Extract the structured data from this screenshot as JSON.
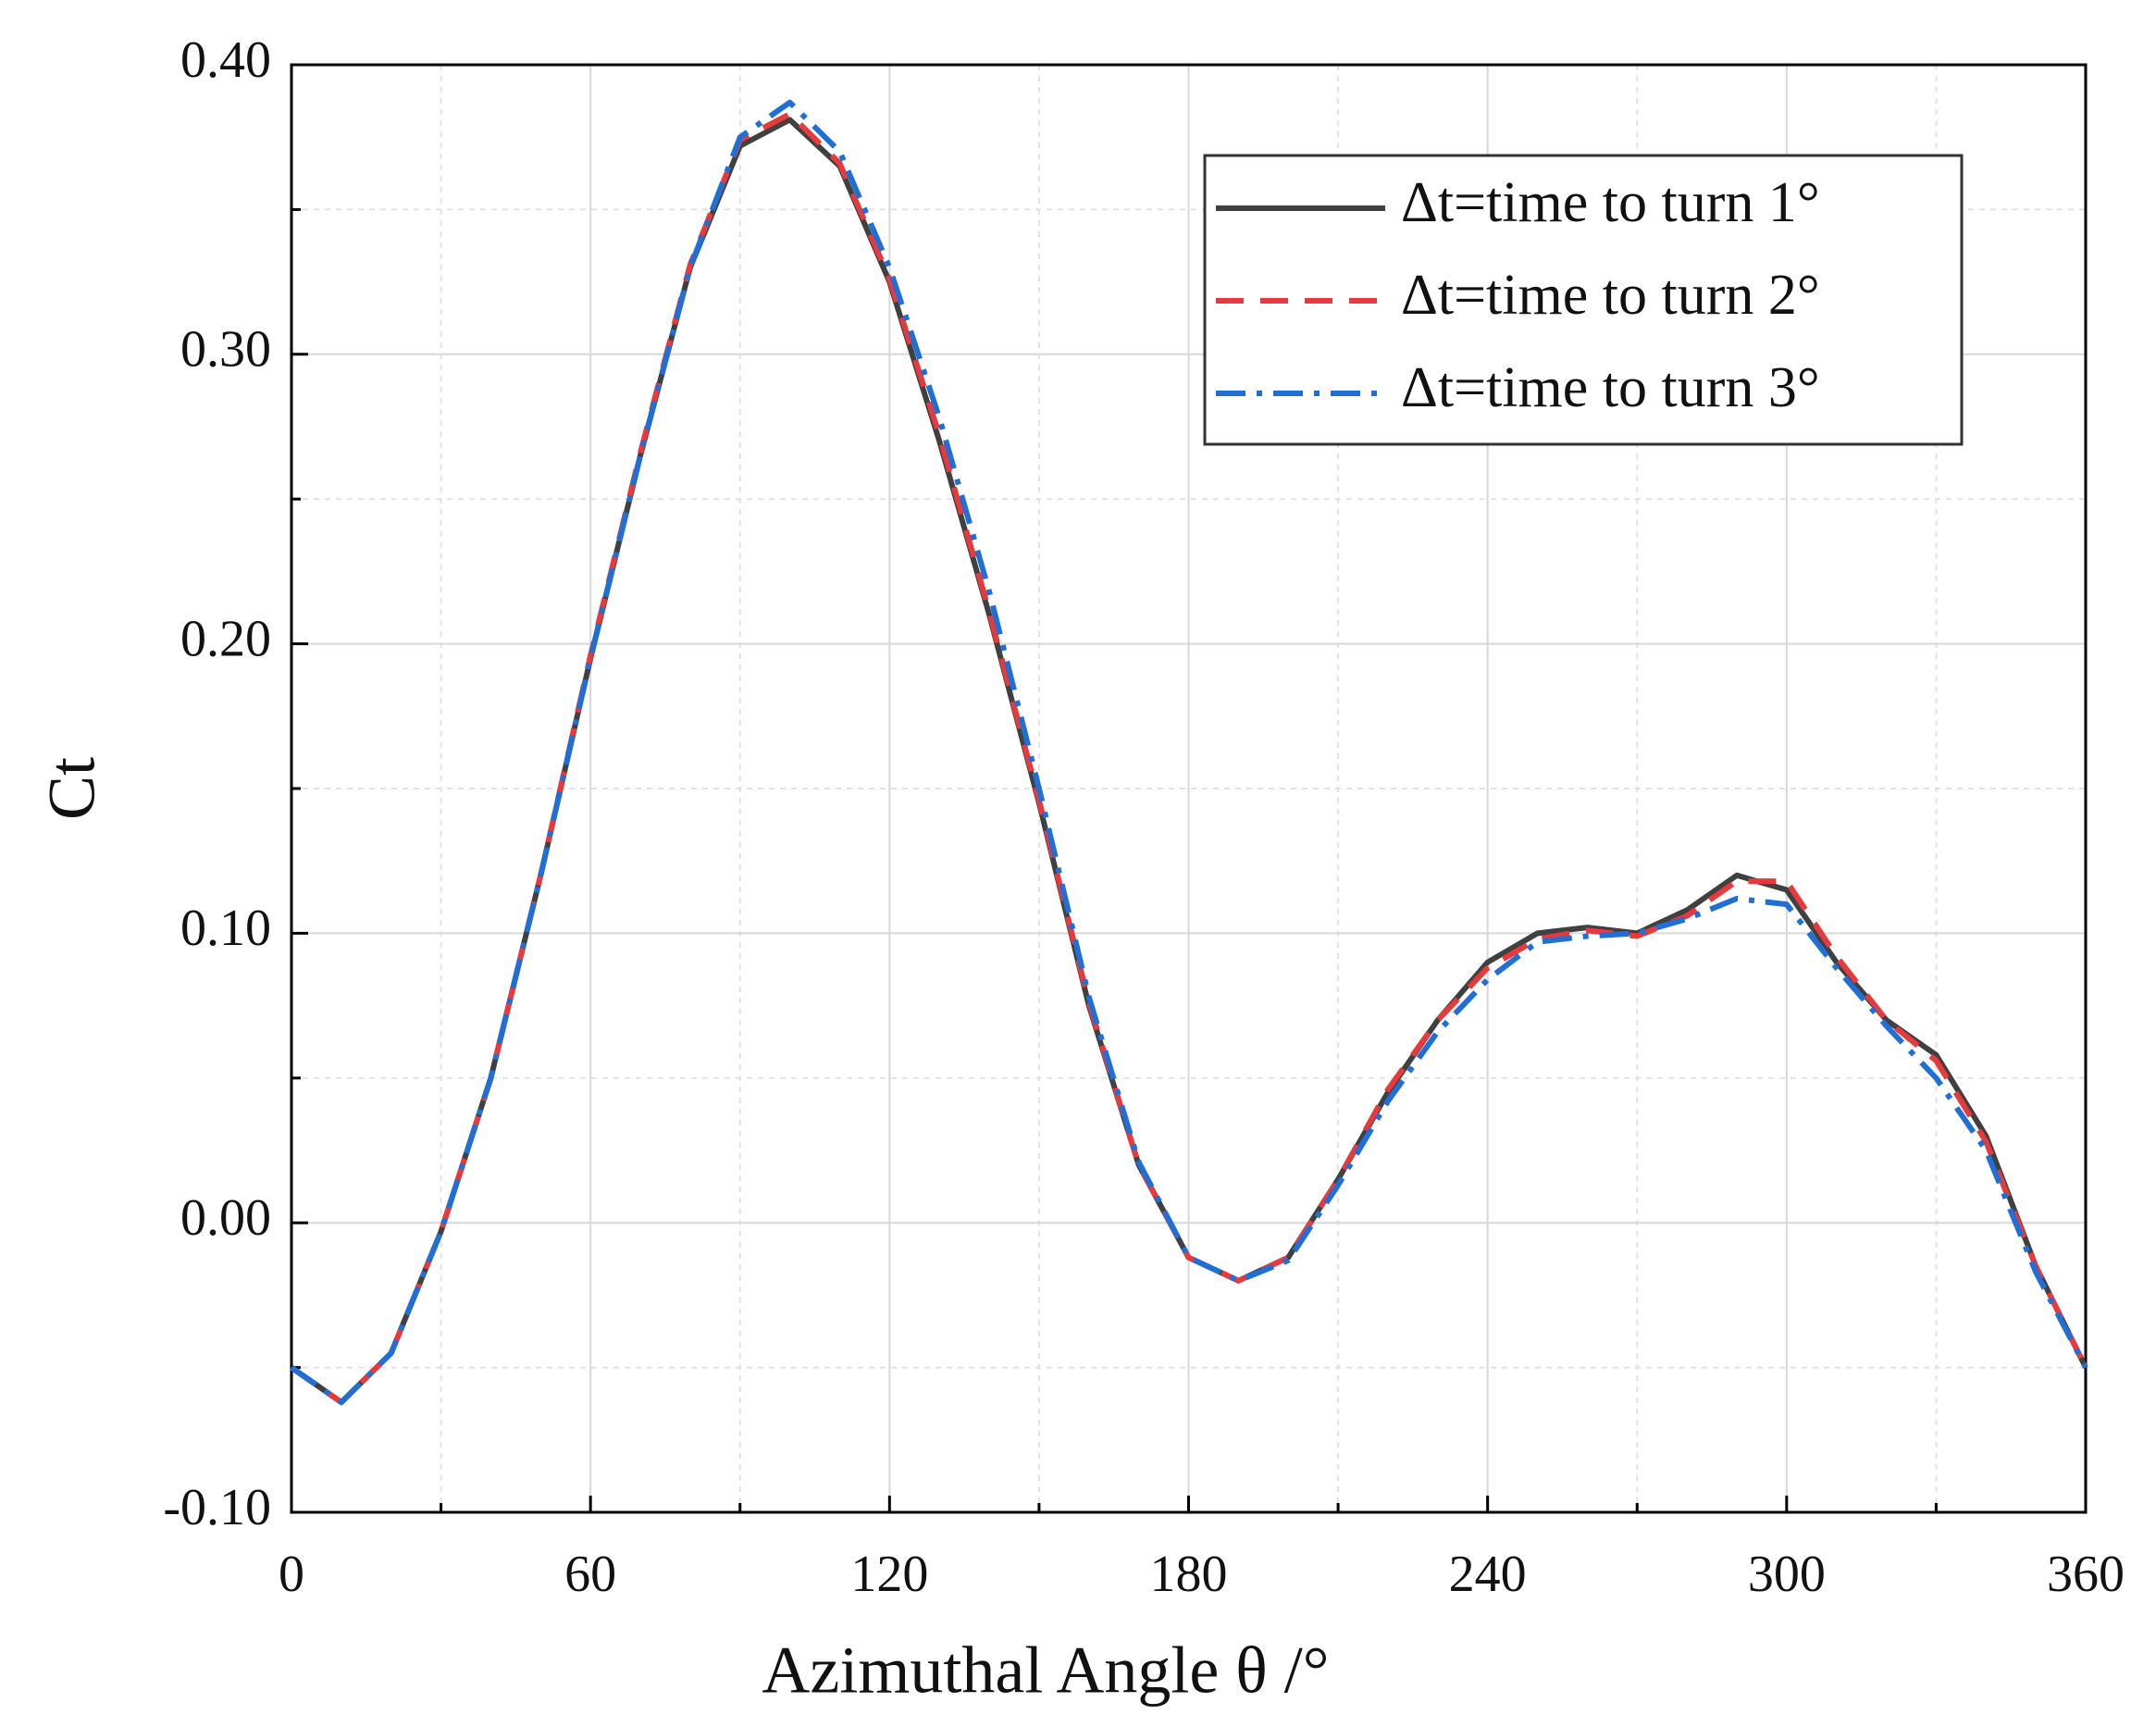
{
  "chart_data": {
    "type": "line",
    "x_label": "Azimuthal Angle θ /°",
    "y_label": "Ct",
    "x": [
      0,
      10,
      20,
      30,
      40,
      50,
      60,
      70,
      80,
      90,
      100,
      110,
      120,
      130,
      140,
      150,
      160,
      170,
      180,
      190,
      200,
      210,
      220,
      230,
      240,
      250,
      260,
      270,
      280,
      290,
      300,
      310,
      320,
      330,
      340,
      350,
      360
    ],
    "series": [
      {
        "name": "Δt=time to turn 1°",
        "color": "#404040",
        "dash": "solid",
        "values": [
          -0.05,
          -0.062,
          -0.045,
          -0.003,
          0.05,
          0.12,
          0.195,
          0.265,
          0.33,
          0.372,
          0.381,
          0.365,
          0.325,
          0.27,
          0.21,
          0.145,
          0.075,
          0.02,
          -0.012,
          -0.02,
          -0.012,
          0.015,
          0.045,
          0.07,
          0.09,
          0.1,
          0.102,
          0.1,
          0.108,
          0.12,
          0.115,
          0.09,
          0.07,
          0.058,
          0.03,
          -0.015,
          -0.05
        ]
      },
      {
        "name": "Δt=time to turn 2°",
        "color": "#e8393c",
        "dash": "dashed",
        "values": [
          -0.05,
          -0.062,
          -0.045,
          -0.003,
          0.05,
          0.12,
          0.196,
          0.266,
          0.331,
          0.374,
          0.383,
          0.366,
          0.326,
          0.272,
          0.211,
          0.146,
          0.076,
          0.02,
          -0.012,
          -0.02,
          -0.012,
          0.015,
          0.046,
          0.07,
          0.088,
          0.098,
          0.101,
          0.099,
          0.106,
          0.118,
          0.118,
          0.092,
          0.07,
          0.056,
          0.028,
          -0.015,
          -0.05
        ]
      },
      {
        "name": "Δt=time to turn 3°",
        "color": "#1f6fd6",
        "dash": "dashdot",
        "values": [
          -0.05,
          -0.062,
          -0.045,
          -0.003,
          0.05,
          0.12,
          0.195,
          0.265,
          0.33,
          0.375,
          0.387,
          0.37,
          0.33,
          0.278,
          0.218,
          0.15,
          0.078,
          0.021,
          -0.012,
          -0.02,
          -0.013,
          0.013,
          0.042,
          0.066,
          0.084,
          0.097,
          0.099,
          0.1,
          0.105,
          0.112,
          0.11,
          0.088,
          0.068,
          0.05,
          0.025,
          -0.017,
          -0.05
        ]
      }
    ],
    "xlim": [
      0,
      360
    ],
    "xticks": [
      0,
      60,
      120,
      180,
      240,
      300,
      360
    ],
    "xminorticks": [
      30,
      90,
      150,
      210,
      270,
      330
    ],
    "ylim": [
      -0.1,
      0.4
    ],
    "yticks": [
      {
        "value": -0.1,
        "label": "-0.10"
      },
      {
        "value": 0,
        "label": "0.00"
      },
      {
        "value": 0.1,
        "label": "0.10"
      },
      {
        "value": 0.2,
        "label": "0.20"
      },
      {
        "value": 0.3,
        "label": "0.30"
      },
      {
        "value": 0.4,
        "label": "0.40"
      }
    ],
    "yminorticks": [
      -0.05,
      0.05,
      0.15,
      0.25,
      0.35
    ],
    "grid": true,
    "legend": "upper right"
  }
}
